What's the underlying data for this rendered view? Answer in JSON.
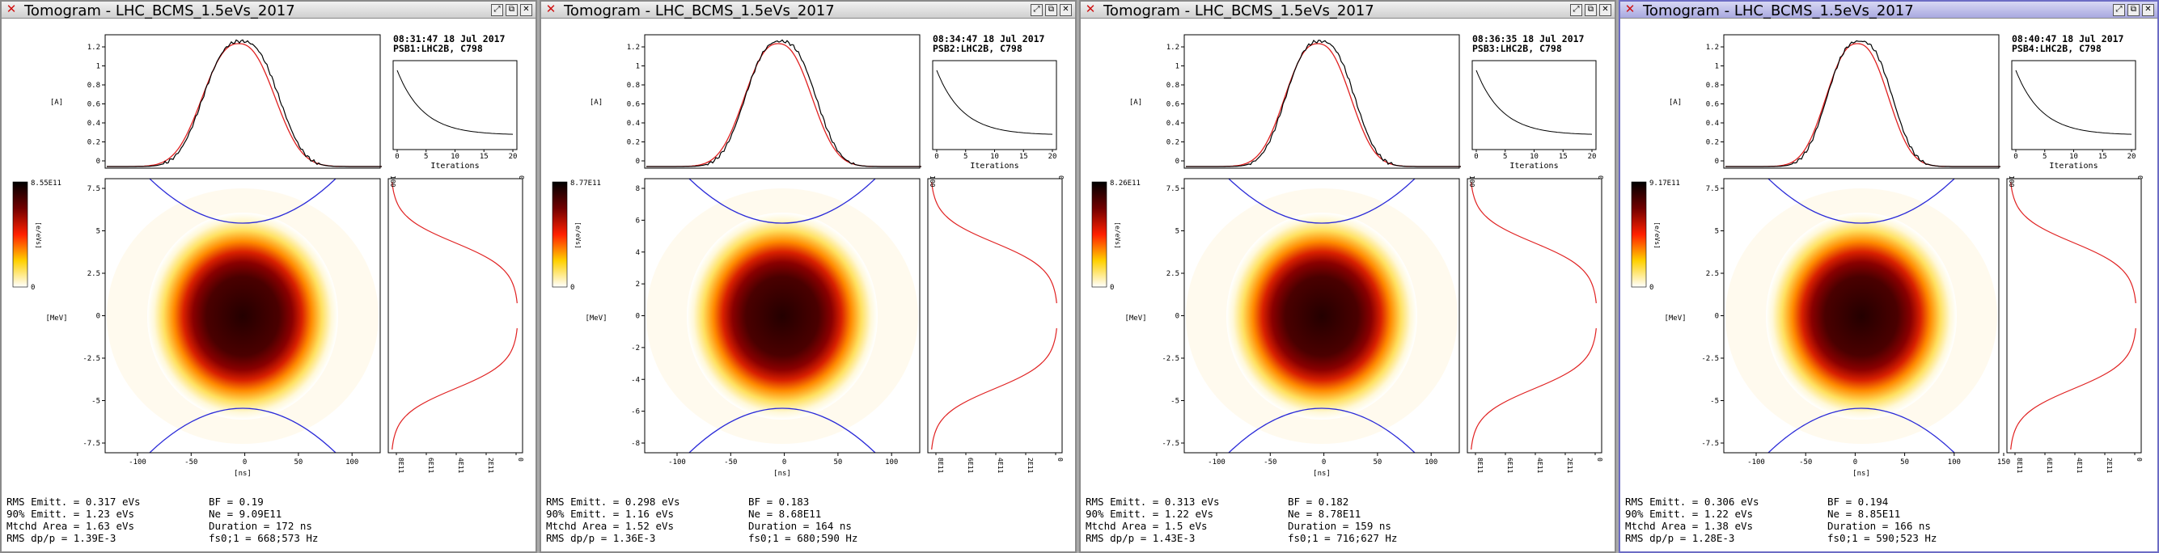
{
  "windows": [
    {
      "title": "Tomogram - LHC_BCMS_1.5eVs_2017",
      "timestamp": "08:31:47 18 Jul 2017",
      "source": "PSB1:LHC2B, C798",
      "colorbar_max": "8.55E11",
      "y_ticks": [
        "7.5",
        "5",
        "2.5",
        "0",
        "-2.5",
        "-5",
        "-7.5"
      ],
      "x_ticks": [
        "-100",
        "-50",
        "0",
        "50",
        "100"
      ],
      "dist_ticks": [
        "8E11",
        "6E11",
        "4E11",
        "2E11",
        "0"
      ],
      "stats": {
        "rms_emitt": "RMS Emitt. = 0.317 eVs",
        "emitt_90": "90% Emitt. = 1.23 eVs",
        "mtchd_area": "Mtchd Area = 1.63 eVs",
        "rms_dpp": "RMS dp/p = 1.39E-3",
        "bf": "BF = 0.19",
        "ne": "Ne = 9.09E11",
        "duration": "Duration = 172 ns",
        "fs": "fs0;1 = 668;573 Hz"
      },
      "active": false
    },
    {
      "title": "Tomogram - LHC_BCMS_1.5eVs_2017",
      "timestamp": "08:34:47 18 Jul 2017",
      "source": "PSB2:LHC2B, C798",
      "colorbar_max": "8.77E11",
      "y_ticks": [
        "8",
        "6",
        "4",
        "2",
        "0",
        "-2",
        "-4",
        "-6",
        "-8"
      ],
      "x_ticks": [
        "-100",
        "-50",
        "0",
        "50",
        "100"
      ],
      "dist_ticks": [
        "8E11",
        "6E11",
        "4E11",
        "2E11",
        "0"
      ],
      "stats": {
        "rms_emitt": "RMS Emitt. = 0.298 eVs",
        "emitt_90": "90% Emitt. = 1.16 eVs",
        "mtchd_area": "Mtchd Area = 1.52 eVs",
        "rms_dpp": "RMS dp/p = 1.36E-3",
        "bf": "BF = 0.183",
        "ne": "Ne = 8.68E11",
        "duration": "Duration = 164 ns",
        "fs": "fs0;1 = 680;590 Hz"
      },
      "active": false
    },
    {
      "title": "Tomogram - LHC_BCMS_1.5eVs_2017",
      "timestamp": "08:36:35 18 Jul 2017",
      "source": "PSB3:LHC2B, C798",
      "colorbar_max": "8.26E11",
      "y_ticks": [
        "7.5",
        "5",
        "2.5",
        "0",
        "-2.5",
        "-5",
        "-7.5"
      ],
      "x_ticks": [
        "-100",
        "-50",
        "0",
        "50",
        "100"
      ],
      "dist_ticks": [
        "8E11",
        "6E11",
        "4E11",
        "2E11",
        "0"
      ],
      "stats": {
        "rms_emitt": "RMS Emitt. = 0.313 eVs",
        "emitt_90": "90% Emitt. = 1.22 eVs",
        "mtchd_area": "Mtchd Area = 1.5 eVs",
        "rms_dpp": "RMS dp/p = 1.43E-3",
        "bf": "BF = 0.182",
        "ne": "Ne = 8.78E11",
        "duration": "Duration = 159 ns",
        "fs": "fs0;1 = 716;627 Hz"
      },
      "active": false
    },
    {
      "title": "Tomogram - LHC_BCMS_1.5eVs_2017",
      "timestamp": "08:40:47 18 Jul 2017",
      "source": "PSB4:LHC2B, C798",
      "colorbar_max": "9.17E11",
      "y_ticks": [
        "7.5",
        "5",
        "2.5",
        "0",
        "-2.5",
        "-5",
        "-7.5"
      ],
      "x_ticks": [
        "-100",
        "-50",
        "0",
        "50",
        "100",
        "150"
      ],
      "dist_ticks": [
        "8E11",
        "6E11",
        "4E11",
        "2E11",
        "0"
      ],
      "stats": {
        "rms_emitt": "RMS Emitt. = 0.306 eVs",
        "emitt_90": "90% Emitt. = 1.22 eVs",
        "mtchd_area": "Mtchd Area = 1.38 eVs",
        "rms_dpp": "RMS dp/p = 1.28E-3",
        "bf": "BF = 0.194",
        "ne": "Ne = 8.85E11",
        "duration": "Duration = 166 ns",
        "fs": "fs0;1 = 590;523 Hz"
      },
      "active": true
    }
  ],
  "labels": {
    "profile_y_axis": "[A]",
    "profile_ticks": [
      "1.2",
      "1",
      "0.8",
      "0.6",
      "0.4",
      "0.2",
      "0"
    ],
    "energy_axis": "[MeV]",
    "time_axis": "[ns]",
    "colorbar_unit": "[e/eVs]",
    "dist_unit": "[e/eVs]",
    "iter_axis": "Iterations",
    "iter_ticks": [
      "0",
      "5",
      "10",
      "15",
      "20"
    ],
    "iter_marks": [
      "100",
      "0"
    ]
  },
  "icons": {
    "close": "close-x-icon",
    "restore": "restore-icon",
    "maximize": "maximize-icon",
    "win_close": "window-close-icon"
  },
  "colors": {
    "measured": "#000000",
    "reconstructed": "#e02020",
    "separatrix": "#2a2ad8",
    "active_border": "#6c6cc4"
  }
}
